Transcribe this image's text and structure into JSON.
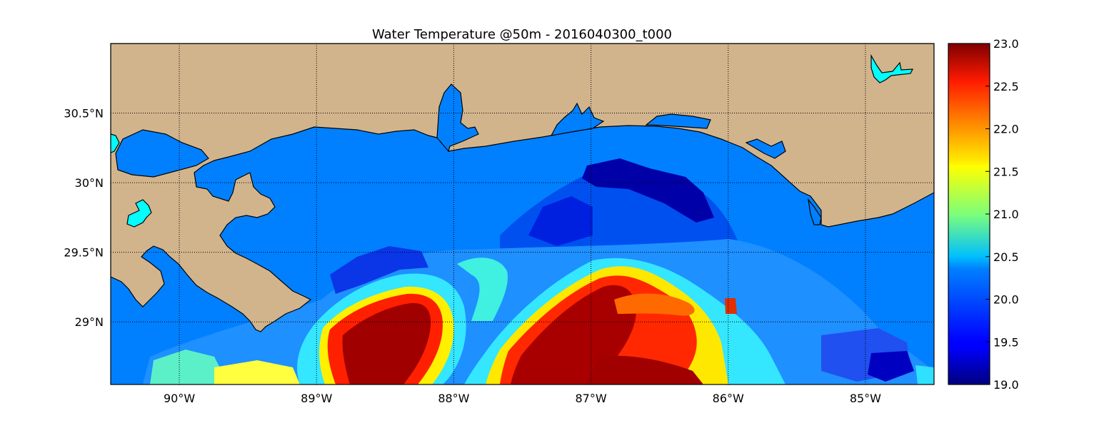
{
  "title": "Water Temperature @50m - 2016040300_t000",
  "map": {
    "lon_range": [
      -90.5,
      -84.5
    ],
    "lat_range": [
      28.55,
      31.0
    ],
    "land_color": "#D2B48C",
    "water_color": "#0080FF",
    "lake_color": "#00FFFF",
    "coastline_color": "#000000",
    "gridlines": "dotted",
    "lon_ticks": [
      {
        "value": -90,
        "label": "90°W"
      },
      {
        "value": -89,
        "label": "89°W"
      },
      {
        "value": -88,
        "label": "88°W"
      },
      {
        "value": -87,
        "label": "87°W"
      },
      {
        "value": -86,
        "label": "86°W"
      },
      {
        "value": -85,
        "label": "85°W"
      }
    ],
    "lat_ticks": [
      {
        "value": 30.5,
        "label": "30.5°N"
      },
      {
        "value": 30.0,
        "label": "30°N"
      },
      {
        "value": 29.5,
        "label": "29.5°N"
      },
      {
        "value": 29.0,
        "label": "29°N"
      }
    ]
  },
  "colorbar": {
    "colormap": "jet",
    "vmin": 19.0,
    "vmax": 23.0,
    "ticks": [
      "19.0",
      "19.5",
      "20.0",
      "20.5",
      "21.0",
      "21.5",
      "22.0",
      "22.5",
      "23.0"
    ]
  }
}
